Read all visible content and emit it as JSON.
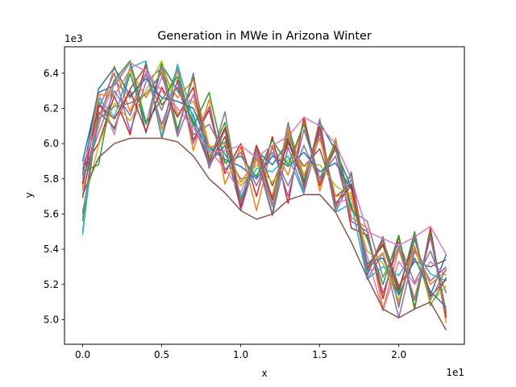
{
  "chart_data": {
    "type": "line",
    "title": "Generation in MWe in Arizona Winter",
    "xlabel": "x",
    "ylabel": "y",
    "x_offset_text": "1e1",
    "y_offset_text": "1e3",
    "xlim": [
      -1.15,
      24.15
    ],
    "ylim": [
      4860,
      6550
    ],
    "xticks": [
      0,
      5,
      10,
      15,
      20
    ],
    "xtick_labels": [
      "0.0",
      "0.5",
      "1.0",
      "1.5",
      "2.0"
    ],
    "yticks": [
      5000,
      5200,
      5400,
      5600,
      5800,
      6000,
      6200,
      6400
    ],
    "ytick_labels": [
      "5.0",
      "5.2",
      "5.4",
      "5.6",
      "5.8",
      "6.0",
      "6.2",
      "6.4"
    ],
    "grid": false,
    "legend": "none",
    "colors": [
      "#1f77b4",
      "#ff7f0e",
      "#2ca02c",
      "#d62728",
      "#9467bd",
      "#8c564b",
      "#e377c2",
      "#7f7f7f",
      "#bcbd22",
      "#17becf"
    ],
    "x": [
      0,
      1,
      2,
      3,
      4,
      5,
      6,
      7,
      8,
      9,
      10,
      11,
      12,
      13,
      14,
      15,
      16,
      17,
      18,
      19,
      20,
      21,
      22,
      23
    ],
    "series": [
      {
        "values": [
          5900,
          6290,
          6330,
          6460,
          6060,
          6450,
          6300,
          6160,
          5890,
          5990,
          5630,
          5960,
          5880,
          6010,
          5780,
          6120,
          5960,
          5750,
          5250,
          5470,
          5080,
          5460,
          5140,
          5370
        ]
      },
      {
        "values": [
          5780,
          6100,
          6440,
          6180,
          6440,
          6080,
          6420,
          5960,
          6250,
          5770,
          5980,
          5620,
          5990,
          5820,
          6130,
          5730,
          6030,
          5580,
          5520,
          5060,
          5400,
          5120,
          5490,
          4980
        ]
      },
      {
        "values": [
          5560,
          6240,
          6080,
          6400,
          6110,
          6460,
          6080,
          6380,
          5920,
          6120,
          5680,
          5940,
          5600,
          6060,
          5790,
          6080,
          5640,
          5830,
          5310,
          5420,
          5150,
          5500,
          5080,
          5240
        ]
      },
      {
        "values": [
          5860,
          6000,
          6270,
          6050,
          6460,
          6030,
          6360,
          6020,
          6190,
          5830,
          6000,
          5700,
          6040,
          5660,
          6150,
          5760,
          5990,
          5520,
          5480,
          5120,
          5470,
          5060,
          5520,
          5010
        ]
      },
      {
        "values": [
          5500,
          6200,
          6400,
          6070,
          6350,
          6430,
          6040,
          6280,
          5860,
          6080,
          5620,
          5920,
          5590,
          5980,
          5720,
          6060,
          5610,
          5800,
          5230,
          5380,
          5010,
          5390,
          5220,
          5300
        ]
      },
      {
        "values": [
          5690,
          6180,
          6090,
          6310,
          6440,
          6220,
          6320,
          6120,
          5880,
          6040,
          5660,
          5990,
          5760,
          6000,
          5870,
          5970,
          5700,
          5770,
          5280,
          5450,
          5190,
          5330,
          5300,
          5340
        ]
      },
      {
        "values": [
          5730,
          6290,
          6050,
          6440,
          6120,
          6380,
          6160,
          6270,
          5960,
          5860,
          5720,
          5950,
          5640,
          6100,
          5810,
          6090,
          5660,
          5690,
          5360,
          5050,
          5330,
          5200,
          5330,
          5250
        ]
      },
      {
        "values": [
          5850,
          6150,
          6360,
          6260,
          6390,
          6190,
          6430,
          6050,
          6110,
          5940,
          5800,
          5820,
          5950,
          5760,
          5990,
          5780,
          5970,
          5620,
          5560,
          5240,
          5440,
          5210,
          5390,
          5150
        ]
      },
      {
        "values": [
          5620,
          5990,
          6230,
          6130,
          6300,
          6470,
          6170,
          6240,
          5990,
          5900,
          5760,
          5880,
          5780,
          5910,
          5870,
          5880,
          5760,
          5700,
          5390,
          5320,
          5110,
          5420,
          5090,
          5190
        ]
      },
      {
        "values": [
          5480,
          6260,
          6150,
          6430,
          6470,
          6040,
          6450,
          6130,
          5960,
          6010,
          5700,
          5860,
          5840,
          5930,
          5710,
          5710,
          5610,
          5660,
          5230,
          5300,
          5250,
          5400,
          5260,
          5220
        ]
      },
      {
        "values": [
          5820,
          6310,
          6430,
          6270,
          6370,
          6260,
          6240,
          6200,
          5980,
          5910,
          5870,
          5800,
          5930,
          5870,
          5950,
          5840,
          5890,
          5740,
          5320,
          5350,
          5140,
          5350,
          5160,
          5070
        ]
      },
      {
        "values": [
          5750,
          6280,
          6270,
          6420,
          6260,
          6410,
          6260,
          6360,
          5980,
          6000,
          5780,
          5910,
          5700,
          6080,
          5820,
          6030,
          5700,
          5720,
          5300,
          5380,
          5090,
          5410,
          5200,
          5280
        ]
      },
      {
        "values": [
          5840,
          5880,
          6360,
          6470,
          6120,
          6250,
          6380,
          6100,
          6290,
          5890,
          5930,
          5810,
          6020,
          5880,
          6110,
          5800,
          6010,
          5640,
          5460,
          5200,
          5480,
          5070,
          5490,
          5040
        ]
      },
      {
        "values": [
          5770,
          6220,
          6140,
          6300,
          6070,
          6320,
          6150,
          6320,
          5900,
          6090,
          5640,
          5990,
          5680,
          6030,
          5760,
          6100,
          5660,
          5760,
          5290,
          5430,
          5170,
          5470,
          5130,
          5230
        ]
      },
      {
        "values": [
          5800,
          6060,
          6300,
          6160,
          6400,
          6110,
          6350,
          6000,
          6210,
          5850,
          5950,
          5760,
          5980,
          5700,
          6080,
          5800,
          5930,
          5560,
          5500,
          5150,
          5420,
          5110,
          5470,
          5030
        ]
      },
      {
        "values": [
          5710,
          5920,
          6000,
          6030,
          6030,
          6030,
          6010,
          5930,
          5800,
          5720,
          5620,
          5570,
          5600,
          5680,
          5710,
          5710,
          5610,
          5440,
          5240,
          5060,
          5010,
          5060,
          5100,
          4940
        ]
      },
      {
        "values": [
          5880,
          6120,
          6340,
          6460,
          6410,
          6300,
          6200,
          6090,
          5950,
          5960,
          5990,
          5920,
          5990,
          6040,
          6150,
          6100,
          6000,
          5800,
          5500,
          5460,
          5420,
          5470,
          5530,
          5370
        ]
      },
      {
        "values": [
          5600,
          6140,
          6210,
          6230,
          6280,
          6400,
          6060,
          6400,
          5870,
          6180,
          5660,
          5970,
          5650,
          6120,
          5740,
          6140,
          5630,
          5840,
          5270,
          5470,
          5070,
          5480,
          5110,
          5290
        ]
      }
    ]
  }
}
